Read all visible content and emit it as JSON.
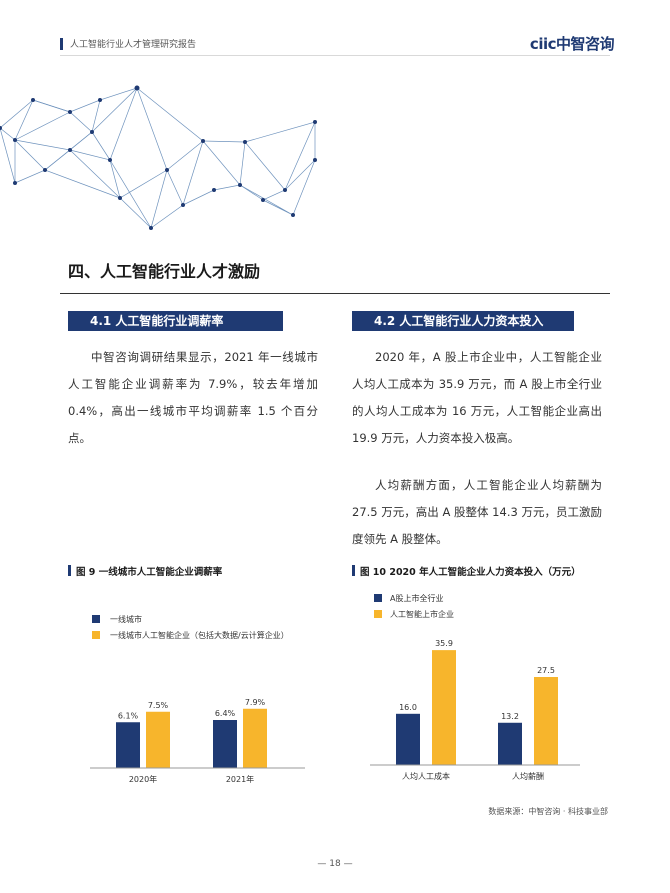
{
  "header": {
    "report_title": "人工智能行业人才管理研究报告",
    "logo_text": "ciic中智咨询"
  },
  "section_heading": "四、人工智能行业人才激励",
  "sec_4_1": {
    "title": "4.1 人工智能行业调薪率",
    "paragraph": "中智咨询调研结果显示，2021 年一线城市人工智能企业调薪率为 7.9%，较去年增加 0.4%，高出一线城市平均调薪率 1.5 个百分点。"
  },
  "sec_4_2": {
    "title": "4.2 人工智能行业人力资本投入",
    "paragraph1": "2020 年，A 股上市企业中，人工智能企业人均人工成本为 35.9 万元，而 A 股上市全行业的人均人工成本为 16 万元，人工智能企业高出 19.9 万元，人力资本投入极高。",
    "paragraph2": "人均薪酬方面，人工智能企业人均薪酬为 27.5 万元，高出 A 股整体 14.3 万元，员工激励度领先 A 股整体。"
  },
  "colors": {
    "navy": "#1f3a73",
    "gold": "#f7b52c"
  },
  "chart_data": [
    {
      "type": "bar",
      "title": "图 9 一线城市人工智能企业调薪率",
      "categories": [
        "2020年",
        "2021年"
      ],
      "series": [
        {
          "name": "一线城市",
          "values": [
            6.1,
            6.4
          ],
          "labels": [
            "6.1%",
            "6.4%"
          ]
        },
        {
          "name": "一线城市人工智能企业（包括大数据/云计算企业）",
          "values": [
            7.5,
            7.9
          ],
          "labels": [
            "7.5%",
            "7.9%"
          ]
        }
      ],
      "ylim": [
        0,
        10
      ]
    },
    {
      "type": "bar",
      "title": "图 10 2020 年人工智能企业人力资本投入（万元）",
      "categories": [
        "人均人工成本",
        "人均薪酬"
      ],
      "series": [
        {
          "name": "A股上市全行业",
          "values": [
            16.0,
            13.2
          ],
          "labels": [
            "16.0",
            "13.2"
          ]
        },
        {
          "name": "人工智能上市企业",
          "values": [
            35.9,
            27.5
          ],
          "labels": [
            "35.9",
            "27.5"
          ]
        }
      ],
      "ylim": [
        0,
        40
      ]
    }
  ],
  "source_note": "数据来源：中智咨询 · 科技事业部",
  "page_number": "— 18 —"
}
